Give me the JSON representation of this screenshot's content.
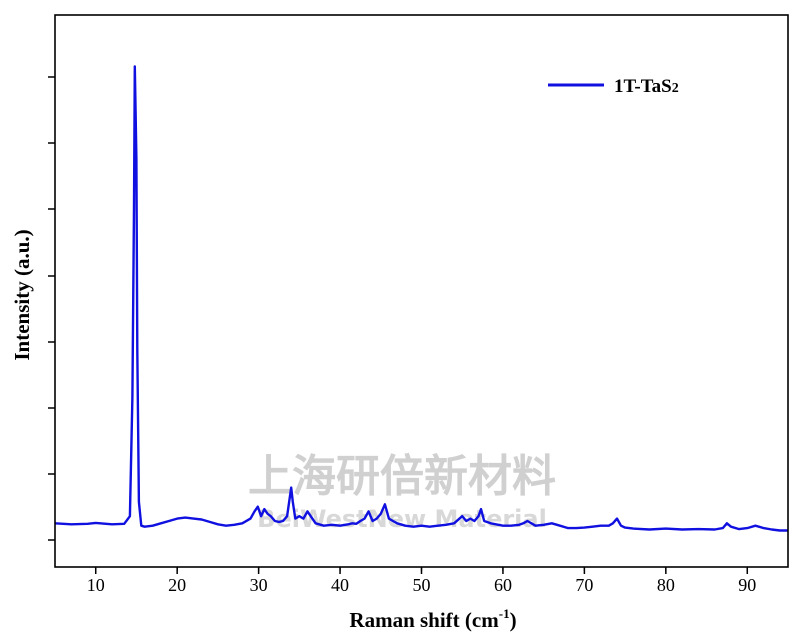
{
  "chart_data": {
    "type": "line",
    "xlabel": "Raman shift (cm",
    "xlabel_superscript": "-1",
    "xlabel_suffix": ")",
    "ylabel": "Intensity (a.u.)",
    "xlim": [
      5,
      95
    ],
    "ylim": [
      0,
      1
    ],
    "x_ticks": [
      10,
      20,
      30,
      40,
      50,
      60,
      70,
      80,
      90
    ],
    "y_tick_labels_shown": false,
    "grid": false,
    "legend_position": "top-right",
    "series": [
      {
        "name": "1T-TaS",
        "name_subscript": "2",
        "color": "#1010e0",
        "x": [
          5,
          7,
          9,
          10,
          12,
          13.5,
          14.2,
          14.5,
          14.7,
          14.8,
          14.9,
          15.0,
          15.1,
          15.3,
          15.6,
          16,
          17,
          18,
          19,
          20,
          21,
          22,
          23,
          24,
          25,
          26,
          27,
          28,
          29,
          29.5,
          29.9,
          30.3,
          30.7,
          31.1,
          31.5,
          32,
          32.5,
          33,
          33.5,
          34.0,
          34.2,
          34.5,
          35,
          35.5,
          36,
          37,
          38,
          39,
          40,
          41,
          41.5,
          42,
          42.5,
          43,
          43.5,
          44,
          44.5,
          45,
          45.5,
          46,
          46.5,
          47,
          48,
          49,
          50,
          51,
          52,
          53,
          54,
          55,
          55.5,
          56,
          56.5,
          57,
          57.3,
          57.7,
          58.5,
          60,
          61,
          62,
          62.5,
          63,
          64,
          65,
          66,
          67,
          68,
          69,
          70,
          71,
          72,
          73,
          73.5,
          74,
          74.5,
          75,
          76,
          78,
          80,
          82,
          84,
          86,
          87,
          87.5,
          88,
          89,
          90,
          91,
          92,
          93,
          94,
          95
        ],
        "y": [
          0.035,
          0.033,
          0.034,
          0.036,
          0.033,
          0.034,
          0.05,
          0.3,
          0.7,
          0.995,
          0.9,
          0.8,
          0.4,
          0.08,
          0.03,
          0.028,
          0.03,
          0.035,
          0.04,
          0.045,
          0.047,
          0.045,
          0.043,
          0.038,
          0.033,
          0.03,
          0.032,
          0.035,
          0.045,
          0.06,
          0.07,
          0.05,
          0.065,
          0.055,
          0.05,
          0.04,
          0.038,
          0.04,
          0.05,
          0.11,
          0.08,
          0.045,
          0.05,
          0.045,
          0.06,
          0.035,
          0.03,
          0.032,
          0.03,
          0.033,
          0.035,
          0.034,
          0.04,
          0.045,
          0.06,
          0.04,
          0.045,
          0.055,
          0.075,
          0.045,
          0.04,
          0.035,
          0.03,
          0.028,
          0.03,
          0.028,
          0.03,
          0.032,
          0.035,
          0.05,
          0.04,
          0.045,
          0.04,
          0.05,
          0.065,
          0.04,
          0.035,
          0.03,
          0.03,
          0.032,
          0.035,
          0.04,
          0.03,
          0.032,
          0.035,
          0.03,
          0.025,
          0.025,
          0.026,
          0.028,
          0.03,
          0.03,
          0.035,
          0.045,
          0.03,
          0.026,
          0.024,
          0.022,
          0.024,
          0.022,
          0.023,
          0.022,
          0.025,
          0.035,
          0.028,
          0.023,
          0.025,
          0.03,
          0.025,
          0.022,
          0.02,
          0.02
        ]
      }
    ]
  },
  "watermark": {
    "cn": "上海研倍新材料",
    "en": "BeiWestNew Material"
  }
}
